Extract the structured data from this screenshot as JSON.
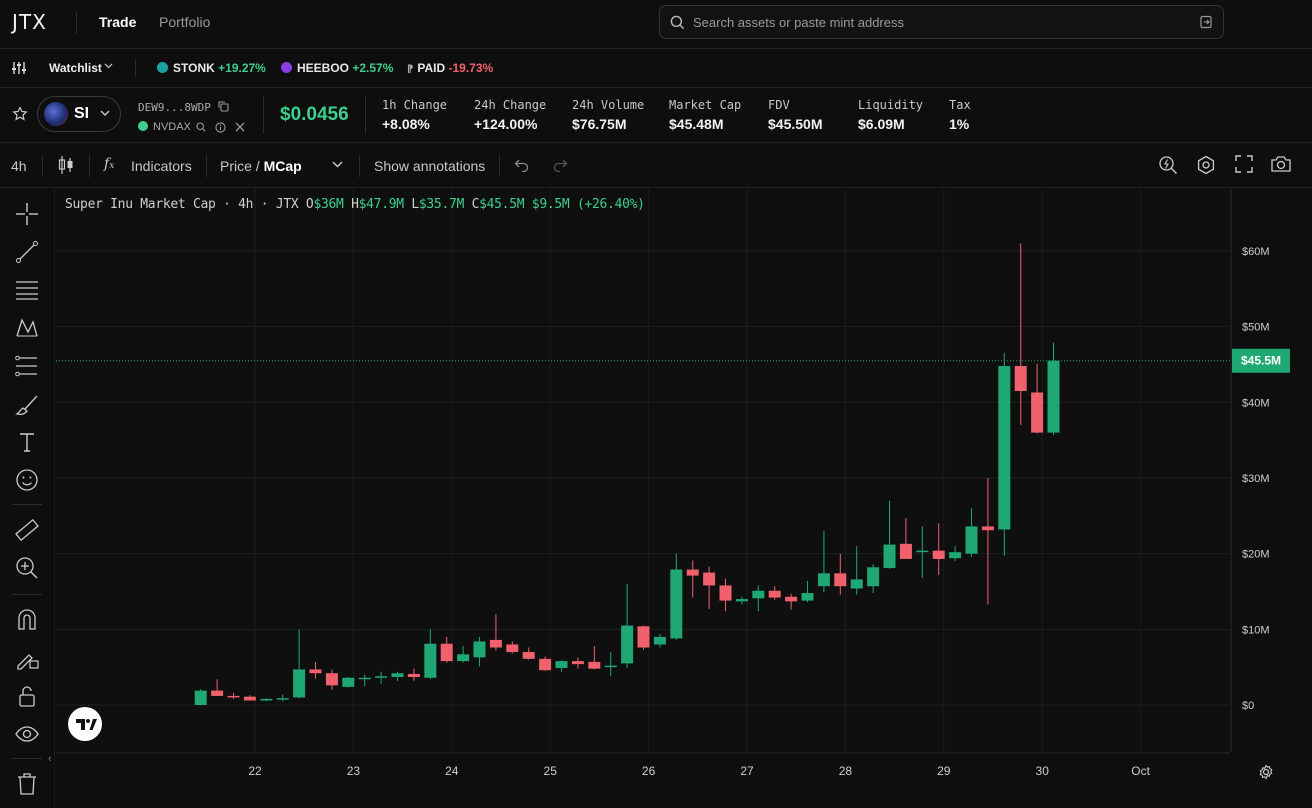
{
  "nav": {
    "logo": "JTX",
    "trade": "Trade",
    "portfolio": "Portfolio"
  },
  "search": {
    "placeholder": "Search assets or paste mint address"
  },
  "watchlist": {
    "label": "Watchlist",
    "items": [
      {
        "symbol": "STONK",
        "change": "+19.27%",
        "dir": "up",
        "color": "#1aa3a3"
      },
      {
        "symbol": "HEEBOO",
        "change": "+2.57%",
        "dir": "up",
        "color": "#8a3de0"
      },
      {
        "symbol": "PAID",
        "change": "-19.73%",
        "dir": "down",
        "color": "#888888"
      }
    ]
  },
  "token": {
    "symbol": "SI",
    "address": "DEW9...8WDP",
    "dex": "NVDAX",
    "price": "$0.0456",
    "stats": [
      {
        "label": "1h Change",
        "value": "+8.08%",
        "dir": "up"
      },
      {
        "label": "24h Change",
        "value": "+124.00%",
        "dir": "up"
      },
      {
        "label": "24h Volume",
        "value": "$76.75M",
        "dir": "neutral"
      },
      {
        "label": "Market Cap",
        "value": "$45.48M",
        "dir": "neutral"
      },
      {
        "label": "FDV",
        "value": "$45.50M",
        "dir": "neutral"
      },
      {
        "label": "Liquidity",
        "value": "$6.09M",
        "dir": "neutral"
      },
      {
        "label": "Tax",
        "value": "1%",
        "dir": "neutral"
      }
    ]
  },
  "toolbar": {
    "interval": "4h",
    "indicators": "Indicators",
    "price_label": "Price",
    "slash": " / ",
    "mcap_label": "MCap",
    "annotations": "Show annotations"
  },
  "legend": {
    "title": "Super Inu Market Cap",
    "interval": "4h",
    "source": "JTX",
    "o_label": "O",
    "o": "$36M",
    "h_label": "H",
    "h": "$47.9M",
    "l_label": "L",
    "l": "$35.7M",
    "c_label": "C",
    "c": "$45.5M",
    "change": "$9.5M (+26.40%)"
  },
  "chart_data": {
    "type": "candlestick",
    "title": "Super Inu Market Cap",
    "unit": "USD millions",
    "ylim": [
      -5,
      69
    ],
    "y_ticks": [
      0,
      10,
      20,
      30,
      40,
      50,
      60
    ],
    "y_tick_labels": [
      "$0",
      "$10M",
      "$20M",
      "$30M",
      "$40M",
      "$50M",
      "$60M"
    ],
    "x_tick_labels": [
      "22",
      "23",
      "24",
      "25",
      "26",
      "27",
      "28",
      "29",
      "30",
      "Oct"
    ],
    "x_tick_index": [
      0.31,
      6.31,
      12.31,
      18.31,
      24.31,
      30.31,
      36.31,
      42.31,
      48.31,
      54.31
    ],
    "first_candle_index": -3,
    "current_value_label": "$45.5M",
    "current_value": 45.5,
    "grid": true,
    "up_color": "#1fa874",
    "down_color": "#f0616d",
    "candles": [
      {
        "o": 0,
        "h": 2.1,
        "l": 0,
        "c": 1.9
      },
      {
        "o": 1.9,
        "h": 3.4,
        "l": 1.2,
        "c": 1.2
      },
      {
        "o": 1.2,
        "h": 1.6,
        "l": 0.8,
        "c": 1.1
      },
      {
        "o": 1.1,
        "h": 1.3,
        "l": 0.6,
        "c": 0.6
      },
      {
        "o": 0.7,
        "h": 0.9,
        "l": 0.5,
        "c": 0.8
      },
      {
        "o": 0.8,
        "h": 1.4,
        "l": 0.5,
        "c": 0.9
      },
      {
        "o": 1.0,
        "h": 10.0,
        "l": 0.9,
        "c": 4.7
      },
      {
        "o": 4.7,
        "h": 5.7,
        "l": 3.5,
        "c": 4.2
      },
      {
        "o": 4.2,
        "h": 4.7,
        "l": 2.0,
        "c": 2.6
      },
      {
        "o": 2.4,
        "h": 3.7,
        "l": 2.3,
        "c": 3.6
      },
      {
        "o": 3.5,
        "h": 4.0,
        "l": 2.5,
        "c": 3.6
      },
      {
        "o": 3.6,
        "h": 4.4,
        "l": 2.8,
        "c": 3.8
      },
      {
        "o": 3.7,
        "h": 4.4,
        "l": 3.2,
        "c": 4.2
      },
      {
        "o": 4.1,
        "h": 4.8,
        "l": 3.2,
        "c": 3.7
      },
      {
        "o": 3.6,
        "h": 10.0,
        "l": 3.4,
        "c": 8.1
      },
      {
        "o": 8.1,
        "h": 9.0,
        "l": 5.6,
        "c": 5.8
      },
      {
        "o": 5.8,
        "h": 7.8,
        "l": 5.6,
        "c": 6.7
      },
      {
        "o": 6.3,
        "h": 9.0,
        "l": 5.1,
        "c": 8.4
      },
      {
        "o": 8.6,
        "h": 12.0,
        "l": 7.2,
        "c": 7.6
      },
      {
        "o": 8.0,
        "h": 8.4,
        "l": 6.8,
        "c": 7.0
      },
      {
        "o": 7.0,
        "h": 7.6,
        "l": 6.0,
        "c": 6.1
      },
      {
        "o": 6.1,
        "h": 6.4,
        "l": 4.5,
        "c": 4.6
      },
      {
        "o": 4.9,
        "h": 5.9,
        "l": 4.4,
        "c": 5.8
      },
      {
        "o": 5.8,
        "h": 6.3,
        "l": 4.8,
        "c": 5.4
      },
      {
        "o": 5.7,
        "h": 7.8,
        "l": 4.7,
        "c": 4.8
      },
      {
        "o": 5.2,
        "h": 7.0,
        "l": 3.8,
        "c": 5.2
      },
      {
        "o": 5.5,
        "h": 16.0,
        "l": 4.9,
        "c": 10.5
      },
      {
        "o": 10.4,
        "h": 10.5,
        "l": 7.3,
        "c": 7.6
      },
      {
        "o": 8.0,
        "h": 9.4,
        "l": 7.6,
        "c": 9.0
      },
      {
        "o": 8.8,
        "h": 20.0,
        "l": 8.6,
        "c": 17.9
      },
      {
        "o": 17.9,
        "h": 19.1,
        "l": 14.2,
        "c": 17.1
      },
      {
        "o": 17.5,
        "h": 18.3,
        "l": 12.7,
        "c": 15.8
      },
      {
        "o": 15.8,
        "h": 16.7,
        "l": 12.4,
        "c": 13.8
      },
      {
        "o": 13.7,
        "h": 14.3,
        "l": 13.3,
        "c": 14.0
      },
      {
        "o": 14.1,
        "h": 15.8,
        "l": 12.4,
        "c": 15.1
      },
      {
        "o": 15.1,
        "h": 15.7,
        "l": 13.9,
        "c": 14.2
      },
      {
        "o": 14.3,
        "h": 14.7,
        "l": 12.6,
        "c": 13.7
      },
      {
        "o": 13.8,
        "h": 16.4,
        "l": 13.6,
        "c": 14.8
      },
      {
        "o": 15.7,
        "h": 23.0,
        "l": 14.9,
        "c": 17.4
      },
      {
        "o": 17.4,
        "h": 20.0,
        "l": 14.6,
        "c": 15.7
      },
      {
        "o": 15.4,
        "h": 21.0,
        "l": 14.6,
        "c": 16.6
      },
      {
        "o": 15.7,
        "h": 18.6,
        "l": 14.8,
        "c": 18.2
      },
      {
        "o": 18.1,
        "h": 27.0,
        "l": 18.0,
        "c": 21.2
      },
      {
        "o": 21.3,
        "h": 24.7,
        "l": 19.3,
        "c": 19.3
      },
      {
        "o": 20.3,
        "h": 23.6,
        "l": 16.8,
        "c": 20.4
      },
      {
        "o": 20.4,
        "h": 24.0,
        "l": 17.2,
        "c": 19.3
      },
      {
        "o": 19.4,
        "h": 21.0,
        "l": 19.0,
        "c": 20.2
      },
      {
        "o": 20.0,
        "h": 26.0,
        "l": 19.6,
        "c": 23.6
      },
      {
        "o": 23.6,
        "h": 30.0,
        "l": 13.3,
        "c": 23.1
      },
      {
        "o": 23.2,
        "h": 46.5,
        "l": 19.7,
        "c": 44.8
      },
      {
        "o": 44.8,
        "h": 61.0,
        "l": 37.0,
        "c": 41.5
      },
      {
        "o": 41.3,
        "h": 45.1,
        "l": 35.9,
        "c": 36.0
      },
      {
        "o": 36.0,
        "h": 47.9,
        "l": 35.7,
        "c": 45.5
      }
    ]
  }
}
